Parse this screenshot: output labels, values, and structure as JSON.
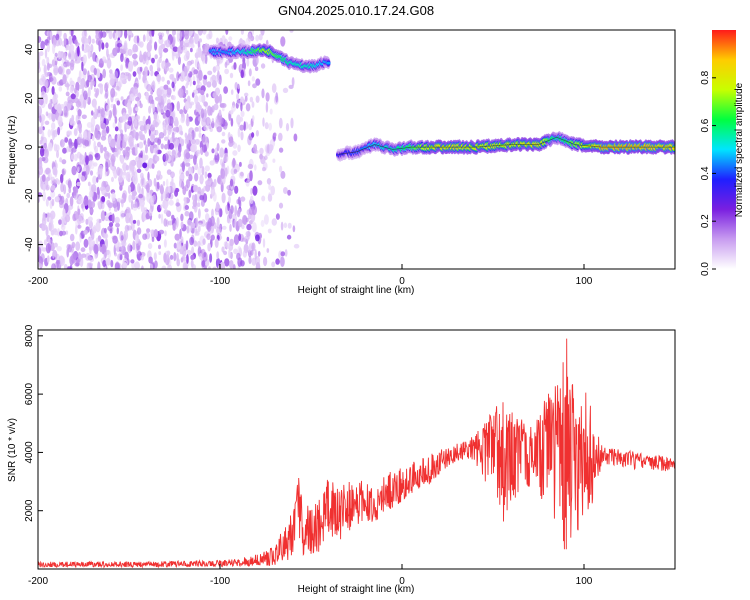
{
  "page_title": "GN04.2025.010.17.24.G08",
  "chart_data": [
    {
      "type": "heatmap",
      "title": "GN04.2025.010.17.24.G08",
      "xlabel": "Height of straight line (km)",
      "ylabel": "Frequency (Hz)",
      "xlim": [
        -200,
        150
      ],
      "ylim": [
        -50,
        48
      ],
      "x_ticks": [
        "-200",
        "-100",
        "0",
        "100"
      ],
      "y_ticks": [
        "-40",
        "-20",
        "0",
        "20",
        "40"
      ],
      "grid": false,
      "colorbar": {
        "label": "Normalized spectral amplitude",
        "range": [
          0,
          1
        ],
        "ticks": [
          "0.0",
          "0.2",
          "0.4",
          "0.6",
          "0.8"
        ],
        "colormap": [
          "#ffffff",
          "#c89cf0",
          "#7a1fe0",
          "#1f1fff",
          "#00e5ff",
          "#00ff40",
          "#c8ff00",
          "#ffcc00",
          "#ff1a1a"
        ]
      },
      "noise_region_x": [
        -200,
        -75
      ],
      "ridge": [
        {
          "x": -105,
          "freq": 39,
          "amp": 0.45
        },
        {
          "x": -95,
          "freq": 39,
          "amp": 0.45
        },
        {
          "x": -85,
          "freq": 39,
          "amp": 0.55
        },
        {
          "x": -75,
          "freq": 40,
          "amp": 0.75
        },
        {
          "x": -68,
          "freq": 37,
          "amp": 0.65
        },
        {
          "x": -60,
          "freq": 34,
          "amp": 0.55
        },
        {
          "x": -50,
          "freq": 33,
          "amp": 0.55
        },
        {
          "x": -40,
          "freq": 35,
          "amp": 0.45
        },
        {
          "x": -35,
          "freq": -3,
          "amp": 0.35
        },
        {
          "x": -25,
          "freq": -2,
          "amp": 0.4
        },
        {
          "x": -15,
          "freq": 1,
          "amp": 0.5
        },
        {
          "x": -5,
          "freq": -1,
          "amp": 0.55
        },
        {
          "x": 5,
          "freq": 0,
          "amp": 0.65
        },
        {
          "x": 20,
          "freq": 0,
          "amp": 0.85
        },
        {
          "x": 40,
          "freq": 0,
          "amp": 0.8
        },
        {
          "x": 60,
          "freq": 1,
          "amp": 0.8
        },
        {
          "x": 75,
          "freq": 1,
          "amp": 0.85
        },
        {
          "x": 85,
          "freq": 4,
          "amp": 0.55
        },
        {
          "x": 95,
          "freq": 1,
          "amp": 0.7
        },
        {
          "x": 110,
          "freq": 0,
          "amp": 0.9
        },
        {
          "x": 130,
          "freq": 0,
          "amp": 0.9
        },
        {
          "x": 150,
          "freq": 0,
          "amp": 0.85
        }
      ]
    },
    {
      "type": "line",
      "xlabel": "Height of straight line (km)",
      "ylabel": "SNR (10 * v/v)",
      "xlim": [
        -200,
        150
      ],
      "ylim": [
        0,
        8200
      ],
      "x_ticks": [
        "-200",
        "-100",
        "0",
        "100"
      ],
      "y_ticks": [
        "2000",
        "4000",
        "6000",
        "8000"
      ],
      "grid": false,
      "color": "#f03030",
      "series": [
        {
          "x": [
            -200,
            -180,
            -160,
            -140,
            -120,
            -100,
            -90,
            -80,
            -70,
            -65,
            -60,
            -57,
            -55,
            -50,
            -45,
            -40,
            -35,
            -30,
            -25,
            -20,
            -15,
            -10,
            -5,
            0,
            5,
            10,
            15,
            20,
            25,
            30,
            35,
            40,
            45,
            50,
            55,
            60,
            65,
            70,
            75,
            80,
            85,
            88,
            90,
            92,
            95,
            100,
            105,
            110,
            120,
            130,
            140,
            150
          ],
          "values": [
            150,
            150,
            160,
            160,
            170,
            180,
            200,
            250,
            350,
            600,
            900,
            2500,
            1500,
            800,
            1400,
            2300,
            1500,
            2000,
            2200,
            2400,
            2000,
            2600,
            2700,
            2800,
            3000,
            3200,
            3300,
            3600,
            3800,
            4000,
            4100,
            4200,
            4300,
            4400,
            4600,
            4700,
            4800,
            4500,
            4700,
            4600,
            4700,
            4000,
            3900,
            4200,
            3900,
            4000,
            3900,
            3900,
            3800,
            3700,
            3700,
            3600
          ],
          "upper": [
            250,
            250,
            260,
            260,
            280,
            300,
            350,
            500,
            800,
            1500,
            2000,
            3500,
            2500,
            2000,
            2500,
            3300,
            2800,
            3000,
            3000,
            3100,
            2800,
            3200,
            3400,
            3500,
            3700,
            3900,
            4000,
            4100,
            4200,
            4300,
            4400,
            4600,
            5000,
            5600,
            5800,
            5500,
            5200,
            5000,
            5300,
            6300,
            6300,
            8200,
            8000,
            7800,
            6800,
            6200,
            5500,
            4200,
            4100,
            4000,
            3900,
            3800
          ],
          "lower": [
            60,
            60,
            60,
            60,
            70,
            80,
            90,
            100,
            120,
            200,
            300,
            1200,
            500,
            300,
            600,
            1200,
            900,
            1200,
            1500,
            1700,
            1400,
            1900,
            2100,
            2300,
            2500,
            2700,
            2900,
            3200,
            3500,
            3700,
            3800,
            3700,
            3000,
            2800,
            1400,
            2200,
            2600,
            2800,
            2600,
            1900,
            1500,
            500,
            300,
            500,
            900,
            1600,
            2200,
            3600,
            3500,
            3400,
            3400,
            3300
          ]
        }
      ]
    }
  ]
}
